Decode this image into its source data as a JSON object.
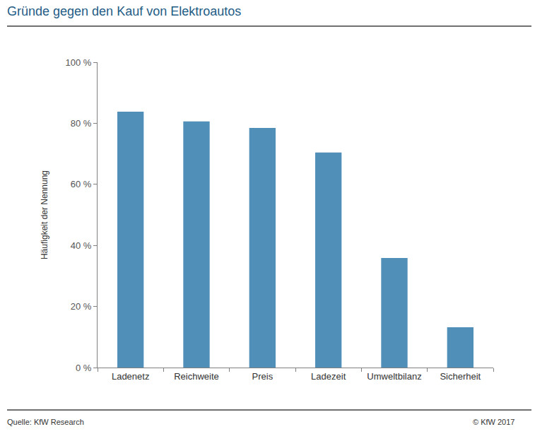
{
  "chart_data": {
    "type": "bar",
    "title": "Gründe gegen den Kauf von Elektroautos",
    "y_label": "Häufigkeit der Nennung",
    "categories": [
      "Ladenetz",
      "Reichweite",
      "Preis",
      "Ladezeit",
      "Umweltbilanz",
      "Sicherheit"
    ],
    "values": [
      83.8,
      80.6,
      78.5,
      70.4,
      35.9,
      13.2
    ],
    "color": "#4f8fb8",
    "ylim": [
      0,
      100
    ],
    "yticks": [
      {
        "value": 0,
        "label": "0 %"
      },
      {
        "value": 20,
        "label": "20 %"
      },
      {
        "value": 40,
        "label": "40 %"
      },
      {
        "value": 60,
        "label": "60 %"
      },
      {
        "value": 80,
        "label": "80 %"
      },
      {
        "value": 100,
        "label": "100 %"
      }
    ],
    "grid": false,
    "annotations": [
      "Quelle: KfW Research",
      "© KfW 2017"
    ]
  }
}
